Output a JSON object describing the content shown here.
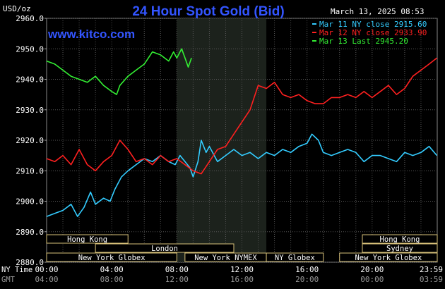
{
  "chart_data": {
    "type": "line",
    "title": "24 Hour Spot Gold (Bid)",
    "units_label": "USD/oz",
    "date_label": "March 13, 2025 08:53",
    "watermark": "www.kitco.com",
    "ylim": [
      2880,
      2960
    ],
    "yticks": [
      "2960.0",
      "2950.0",
      "2940.0",
      "2930.0",
      "2920.0",
      "2910.0",
      "2900.0",
      "2890.0",
      "2880.0"
    ],
    "xlim_hours": [
      0,
      24
    ],
    "xaxis_rows": [
      {
        "label": "NY Time",
        "ticks": [
          "00:00",
          "04:00",
          "08:00",
          "12:00",
          "16:00",
          "20:00",
          "23:59"
        ]
      },
      {
        "label": "GMT",
        "ticks": [
          "04:00",
          "08:00",
          "12:00",
          "16:00",
          "20:00",
          "00:00",
          "03:59"
        ]
      }
    ],
    "legend_position": "top-right",
    "series": [
      {
        "name": "Mar 11 NY close 2915.60",
        "color": "#33ccff",
        "x": [
          0,
          0.5,
          1,
          1.5,
          1.9,
          2.3,
          2.7,
          3.0,
          3.5,
          3.9,
          4.2,
          4.6,
          5.0,
          5.5,
          6.0,
          6.5,
          7.0,
          7.5,
          7.9,
          8.2,
          8.5,
          8.8,
          9.0,
          9.3,
          9.5,
          9.8,
          10.0,
          10.5,
          11.0,
          11.5,
          12.0,
          12.5,
          13.0,
          13.5,
          14.0,
          14.5,
          15.0,
          15.5,
          16.0,
          16.3,
          16.7,
          17.0,
          17.5,
          18.0,
          18.5,
          19.0,
          19.5,
          20.0,
          20.5,
          21.0,
          21.5,
          22.0,
          22.5,
          23.0,
          23.5,
          23.98
        ],
        "values": [
          2895,
          2896,
          2897,
          2899,
          2895,
          2898,
          2903,
          2899,
          2901,
          2900,
          2904,
          2908,
          2910,
          2912,
          2914,
          2913,
          2915,
          2913,
          2912,
          2915,
          2913,
          2911,
          2908,
          2913,
          2920,
          2916,
          2918,
          2913,
          2915,
          2917,
          2915,
          2916,
          2914,
          2916,
          2915,
          2917,
          2916,
          2918,
          2919,
          2922,
          2920,
          2916,
          2915,
          2916,
          2917,
          2916,
          2913,
          2915,
          2915,
          2914,
          2913,
          2916,
          2915,
          2916,
          2918,
          2915
        ]
      },
      {
        "name": "Mar 12 NY close 2933.90",
        "color": "#ff2020",
        "x": [
          0,
          0.5,
          1,
          1.5,
          2.0,
          2.5,
          3.0,
          3.5,
          4.0,
          4.5,
          5.0,
          5.5,
          6.0,
          6.5,
          7.0,
          7.5,
          8.0,
          8.5,
          9.0,
          9.5,
          10.0,
          10.5,
          11.0,
          11.5,
          12.0,
          12.5,
          13.0,
          13.5,
          14.0,
          14.5,
          15.0,
          15.5,
          16.0,
          16.5,
          17.0,
          17.5,
          18.0,
          18.5,
          19.0,
          19.5,
          20.0,
          20.5,
          21.0,
          21.5,
          22.0,
          22.5,
          23.0,
          23.5,
          23.98
        ],
        "values": [
          2914,
          2913,
          2915,
          2912,
          2917,
          2912,
          2910,
          2913,
          2915,
          2920,
          2917,
          2913,
          2914,
          2912,
          2915,
          2913,
          2914,
          2912,
          2910,
          2909,
          2913,
          2917,
          2918,
          2922,
          2926,
          2930,
          2938,
          2937,
          2939,
          2935,
          2934,
          2935,
          2933,
          2932,
          2932,
          2934,
          2934,
          2935,
          2934,
          2936,
          2934,
          2936,
          2938,
          2935,
          2937,
          2941,
          2943,
          2945,
          2947
        ]
      },
      {
        "name": "Mar 13 Last 2945.20",
        "color": "#33ee33",
        "x": [
          0,
          0.5,
          1.0,
          1.5,
          2.0,
          2.5,
          3.0,
          3.5,
          4.0,
          4.3,
          4.5,
          5.0,
          5.5,
          6.0,
          6.5,
          7.0,
          7.5,
          7.8,
          8.0,
          8.3,
          8.5,
          8.7,
          8.9
        ],
        "values": [
          2946,
          2945,
          2943,
          2941,
          2940,
          2939,
          2941,
          2938,
          2936,
          2935,
          2938,
          2941,
          2943,
          2945,
          2949,
          2948,
          2946,
          2949,
          2947,
          2950,
          2947,
          2944,
          2947
        ]
      }
    ],
    "highlight_band": {
      "start_hour": 8.0,
      "end_hour": 13.5
    },
    "market_sessions": [
      {
        "name": "Hong Kong",
        "start_hour": 0.0,
        "end_hour": 5.0,
        "row": 0
      },
      {
        "name": "Hong Kong",
        "start_hour": 19.4,
        "end_hour": 24.0,
        "row": 0
      },
      {
        "name": "London",
        "start_hour": 3.0,
        "end_hour": 11.5,
        "row": 1
      },
      {
        "name": "Sydney",
        "start_hour": 19.4,
        "end_hour": 24.0,
        "row": 1
      },
      {
        "name": "New York Globex",
        "start_hour": 0.0,
        "end_hour": 8.0,
        "row": 2
      },
      {
        "name": "New York NYMEX",
        "start_hour": 8.5,
        "end_hour": 13.5,
        "row": 2
      },
      {
        "name": "NY Globex",
        "start_hour": 13.5,
        "end_hour": 17.0,
        "row": 2
      },
      {
        "name": "New York Globex",
        "start_hour": 18.0,
        "end_hour": 24.0,
        "row": 2
      }
    ]
  }
}
